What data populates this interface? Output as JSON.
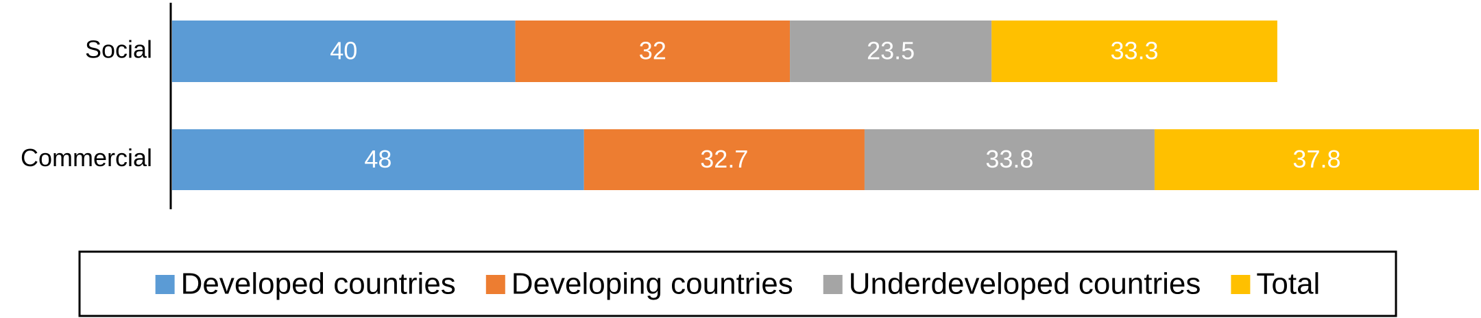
{
  "chart_data": {
    "type": "stacked-bar-horizontal",
    "categories": [
      "Social",
      "Commercial"
    ],
    "series": [
      {
        "name": "Developed countries",
        "color": "#5b9bd5",
        "values": [
          40,
          48
        ]
      },
      {
        "name": "Developing countries",
        "color": "#ed7d31",
        "values": [
          32,
          32.7
        ]
      },
      {
        "name": "Underdeveloped countries",
        "color": "#a5a5a5",
        "values": [
          23.5,
          33.8
        ]
      },
      {
        "name": "Total",
        "color": "#ffc000",
        "values": [
          33.3,
          37.8
        ]
      }
    ],
    "legend": "bottom"
  }
}
